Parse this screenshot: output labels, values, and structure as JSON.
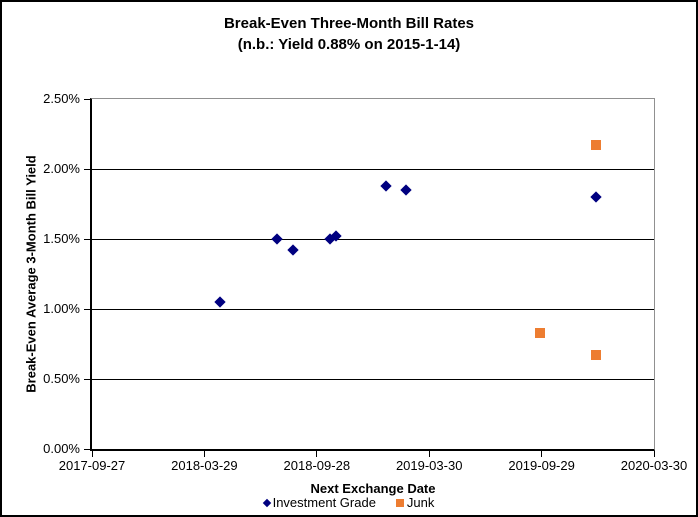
{
  "chart_data": {
    "type": "scatter",
    "title": "Break-Even Three-Month Bill Rates",
    "subtitle": "(n.b.: Yield 0.88% on 2015-1-14)",
    "xlabel": "Next Exchange Date",
    "ylabel": "Break-Even Average 3-Month Bill Yield",
    "grid": "horizontal-only",
    "legend_position": "bottom",
    "x_range": [
      "2017-09-27",
      "2020-03-30"
    ],
    "ylim": [
      0.0,
      2.5
    ],
    "y_unit": "percent",
    "y_gridline_values": [
      0.5,
      1.0,
      1.5,
      2.0
    ],
    "y_tick_values": [
      0.0,
      0.5,
      1.0,
      1.5,
      2.0,
      2.5
    ],
    "y_tick_labels": [
      "0.00%",
      "0.50%",
      "1.00%",
      "1.50%",
      "2.00%",
      "2.50%"
    ],
    "x_tick_labels": [
      "2017-09-27",
      "2018-03-29",
      "2018-09-28",
      "2019-03-30",
      "2019-09-29",
      "2020-03-30"
    ],
    "series": [
      {
        "name": "Investment Grade",
        "marker": "diamond",
        "color": "#000080",
        "points": [
          {
            "x": "2018-04-24",
            "y": 1.05
          },
          {
            "x": "2018-07-25",
            "y": 1.5
          },
          {
            "x": "2018-08-21",
            "y": 1.42
          },
          {
            "x": "2018-10-20",
            "y": 1.5
          },
          {
            "x": "2018-10-29",
            "y": 1.52
          },
          {
            "x": "2019-01-19",
            "y": 1.88
          },
          {
            "x": "2019-02-20",
            "y": 1.85
          },
          {
            "x": "2019-12-26",
            "y": 1.8
          }
        ]
      },
      {
        "name": "Junk",
        "marker": "square",
        "color": "#ED7D31",
        "points": [
          {
            "x": "2019-09-26",
            "y": 0.83
          },
          {
            "x": "2019-12-26",
            "y": 2.17
          },
          {
            "x": "2019-12-26",
            "y": 0.67
          }
        ]
      }
    ]
  }
}
